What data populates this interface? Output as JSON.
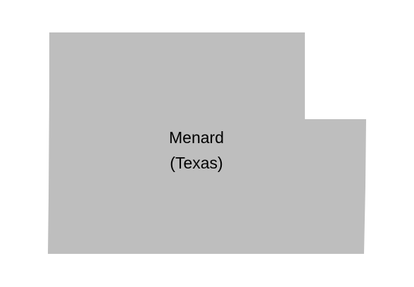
{
  "map": {
    "region": {
      "name": "Menard",
      "state_label": "(Texas)",
      "fill_color": "#bebebe"
    },
    "background_color": "#ffffff"
  }
}
